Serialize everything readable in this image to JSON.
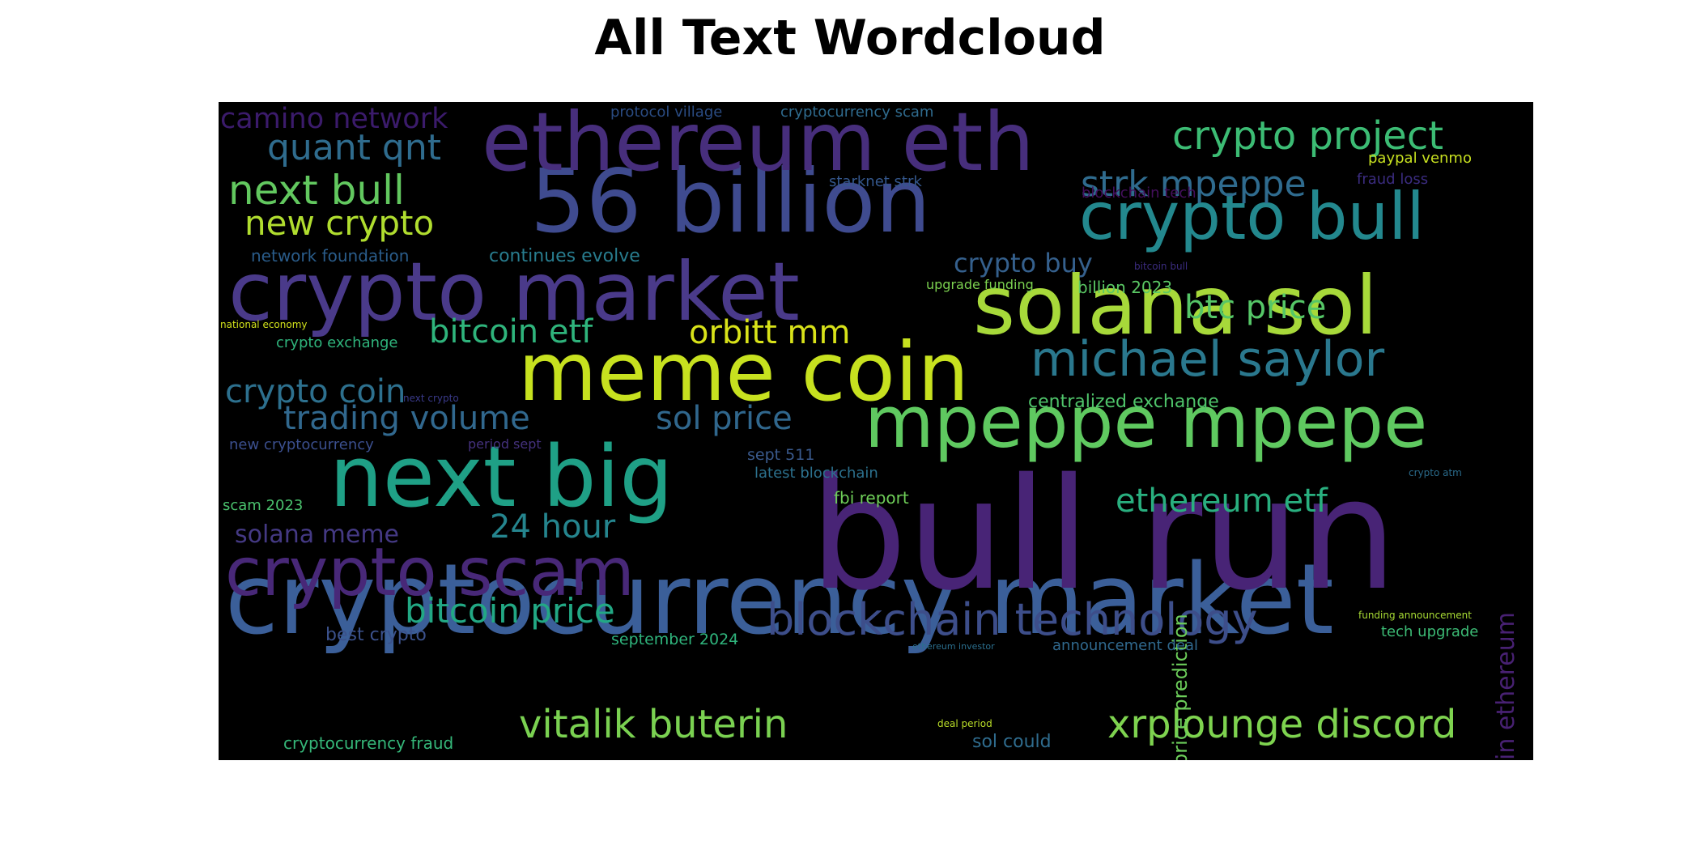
{
  "title": "All Text Wordcloud",
  "words": [
    {
      "text": "cryptocurrency market",
      "color": "#3b5f99"
    },
    {
      "text": "bull run",
      "color": "#482476"
    },
    {
      "text": "crypto market",
      "color": "#4a3a8a"
    },
    {
      "text": "56 billion",
      "color": "#3f4b8f"
    },
    {
      "text": "ethereum eth",
      "color": "#472e7c"
    },
    {
      "text": "meme coin",
      "color": "#c7e11f"
    },
    {
      "text": "next big",
      "color": "#1fa086"
    },
    {
      "text": "solana sol",
      "color": "#a7d93a"
    },
    {
      "text": "mpeppe mpepe",
      "color": "#5fc960"
    },
    {
      "text": "crypto scam",
      "color": "#482878"
    },
    {
      "text": "crypto bull",
      "color": "#23888e"
    },
    {
      "text": "michael saylor",
      "color": "#2a788e"
    },
    {
      "text": "blockchain technology",
      "color": "#3d4e8a"
    },
    {
      "text": "xrplounge discord",
      "color": "#7ed34f"
    },
    {
      "text": "vitalik buterin",
      "color": "#7ad151"
    },
    {
      "text": "crypto project",
      "color": "#3cbc74"
    },
    {
      "text": "strk mpeppe",
      "color": "#2f6b8e"
    },
    {
      "text": "next bull",
      "color": "#62c85f"
    },
    {
      "text": "quant qnt",
      "color": "#2f6c8e"
    },
    {
      "text": "new crypto",
      "color": "#b0dd2f"
    },
    {
      "text": "camino network",
      "color": "#3b1b6b"
    },
    {
      "text": "btc price",
      "color": "#55c667"
    },
    {
      "text": "crypto buy",
      "color": "#35608d"
    },
    {
      "text": "bitcoin etf",
      "color": "#2fb47c"
    },
    {
      "text": "orbitt mm",
      "color": "#d8e219"
    },
    {
      "text": "crypto coin",
      "color": "#2d708e"
    },
    {
      "text": "trading volume",
      "color": "#31688e"
    },
    {
      "text": "sol price",
      "color": "#30678d"
    },
    {
      "text": "ethereum etf",
      "color": "#29af7f"
    },
    {
      "text": "24 hour",
      "color": "#25858e"
    },
    {
      "text": "solana meme",
      "color": "#443983"
    },
    {
      "text": "bitcoin price",
      "color": "#22a884"
    },
    {
      "text": "bitcoin ethereum",
      "color": "#482173"
    },
    {
      "text": "price prediction",
      "color": "#6ccd5a"
    },
    {
      "text": "protocol village",
      "color": "#2a4b82"
    },
    {
      "text": "cryptocurrency scam",
      "color": "#2f6b8e"
    },
    {
      "text": "starknet strk",
      "color": "#34578c"
    },
    {
      "text": "paypal venmo",
      "color": "#c7e020"
    },
    {
      "text": "fraud loss",
      "color": "#3b2c80"
    },
    {
      "text": "blockchain tech",
      "color": "#440f5c"
    },
    {
      "text": "network foundation",
      "color": "#2a5c8a"
    },
    {
      "text": "continues evolve",
      "color": "#287c8e"
    },
    {
      "text": "upgrade funding",
      "color": "#7cd250"
    },
    {
      "text": "billion 2023",
      "color": "#5ac864"
    },
    {
      "text": "bitcoin bull",
      "color": "#3b2c80"
    },
    {
      "text": "national economy",
      "color": "#d2e21b"
    },
    {
      "text": "crypto exchange",
      "color": "#2fb47c"
    },
    {
      "text": "next crypto",
      "color": "#3a3a8a"
    },
    {
      "text": "centralized exchange",
      "color": "#4fc46a"
    },
    {
      "text": "new cryptocurrency",
      "color": "#3b4f8e"
    },
    {
      "text": "period sept",
      "color": "#44317d"
    },
    {
      "text": "sept 511",
      "color": "#3a5a8d"
    },
    {
      "text": "latest blockchain",
      "color": "#2c718e"
    },
    {
      "text": "crypto atm",
      "color": "#2a6a8a"
    },
    {
      "text": "scam 2023",
      "color": "#4ac16d"
    },
    {
      "text": "fbi report",
      "color": "#6ece58"
    },
    {
      "text": "best crypto",
      "color": "#3b518b"
    },
    {
      "text": "september 2024",
      "color": "#2fb47c"
    },
    {
      "text": "announcement deal",
      "color": "#30698e"
    },
    {
      "text": "ethereum investor",
      "color": "#2b6f8e"
    },
    {
      "text": "funding announcement",
      "color": "#a8db34"
    },
    {
      "text": "tech upgrade",
      "color": "#3cbb75"
    },
    {
      "text": "deal period",
      "color": "#bade28"
    },
    {
      "text": "sol could",
      "color": "#2f6c8e"
    },
    {
      "text": "cryptocurrency fraud",
      "color": "#35b779"
    }
  ]
}
